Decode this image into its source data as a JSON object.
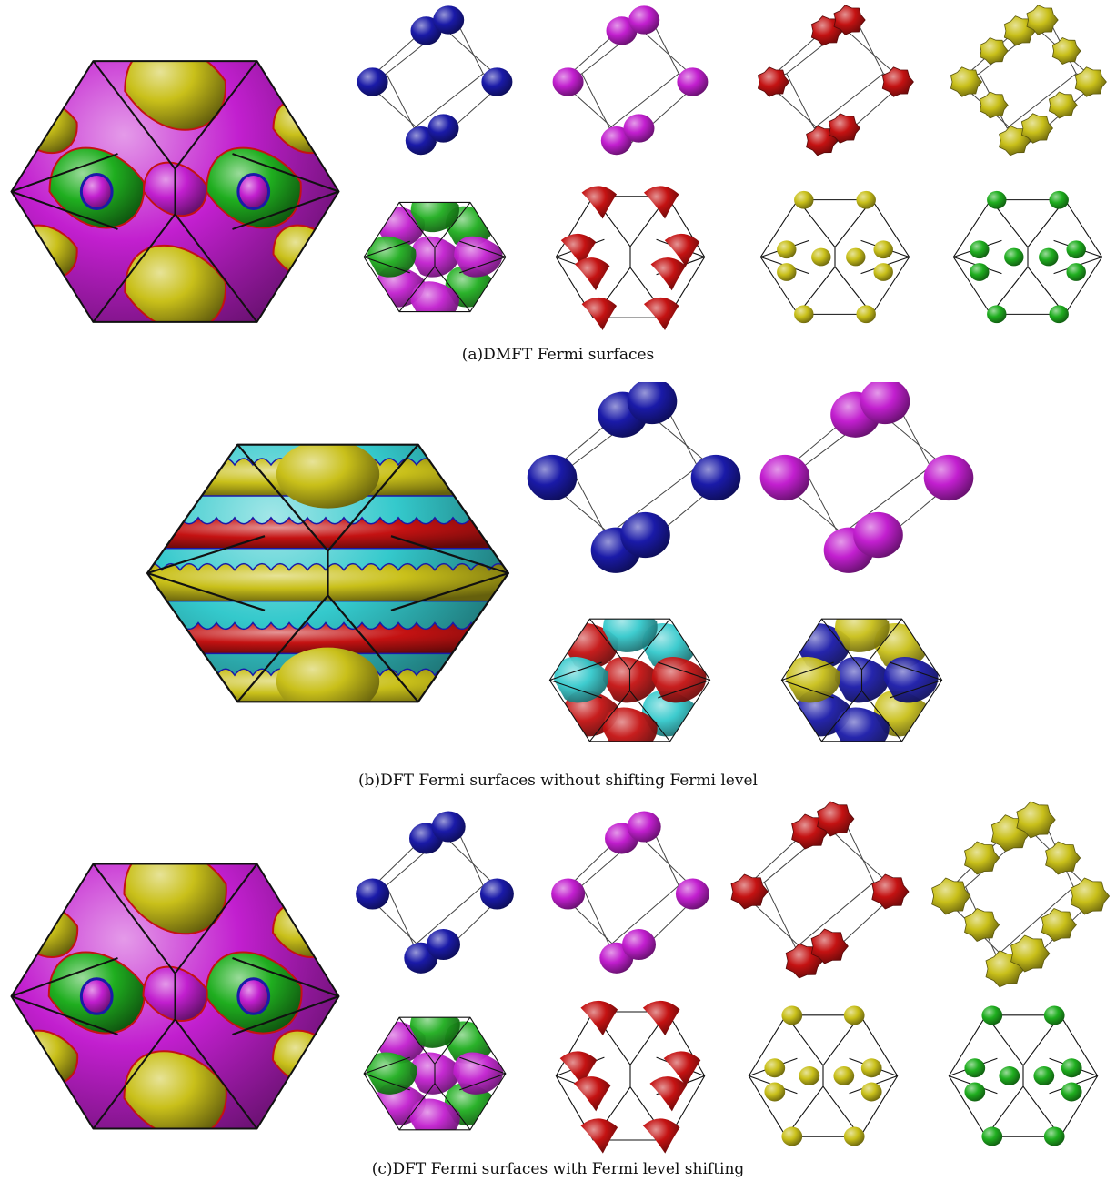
{
  "figure": {
    "captions": {
      "a": "(a)DMFT Fermi surfaces",
      "b": "(b)DFT Fermi surfaces without shifting Fermi level",
      "c": "(c)DFT Fermi surfaces with Fermi level shifting"
    },
    "colors": {
      "blue": "#1a1aa8",
      "magenta": "#c21fcf",
      "red": "#c41212",
      "yellow": "#c9c01a",
      "green": "#1fae1f",
      "cyan": "#34c9cc",
      "edge": "#111111"
    },
    "panels": [
      {
        "id": "a-combined",
        "type": "combined",
        "layers": [
          "magenta",
          "yellow",
          "green",
          "red",
          "blue"
        ]
      },
      {
        "id": "a-blue",
        "type": "blobs",
        "color": "blue"
      },
      {
        "id": "a-magenta",
        "type": "blobs",
        "color": "magenta"
      },
      {
        "id": "a-red",
        "type": "blobs",
        "color": "red"
      },
      {
        "id": "a-yellow",
        "type": "blobs",
        "color": "yellow"
      },
      {
        "id": "a-mixed",
        "type": "mixed",
        "layers": [
          "magenta",
          "green"
        ]
      },
      {
        "id": "a-red-pockets",
        "type": "pockets",
        "color": "red"
      },
      {
        "id": "a-yellow-spheres",
        "type": "spheres",
        "color": "yellow"
      },
      {
        "id": "a-green-spheres",
        "type": "spheres",
        "color": "green"
      },
      {
        "id": "b-combined",
        "type": "combined",
        "layers": [
          "red",
          "yellow",
          "cyan",
          "blue",
          "magenta"
        ]
      },
      {
        "id": "b-blue",
        "type": "blobs",
        "color": "blue"
      },
      {
        "id": "b-magenta",
        "type": "blobs",
        "color": "magenta"
      },
      {
        "id": "b-red-cyan",
        "type": "mixed",
        "layers": [
          "red",
          "cyan"
        ]
      },
      {
        "id": "b-blue-yellow",
        "type": "mixed",
        "layers": [
          "blue",
          "yellow"
        ]
      },
      {
        "id": "c-combined",
        "type": "combined",
        "layers": [
          "magenta",
          "yellow",
          "green",
          "red",
          "blue"
        ]
      },
      {
        "id": "c-blue",
        "type": "blobs",
        "color": "blue"
      },
      {
        "id": "c-magenta",
        "type": "blobs",
        "color": "magenta"
      },
      {
        "id": "c-red",
        "type": "blobs",
        "color": "red"
      },
      {
        "id": "c-yellow",
        "type": "blobs",
        "color": "yellow"
      },
      {
        "id": "c-mixed",
        "type": "mixed",
        "layers": [
          "magenta",
          "green"
        ]
      },
      {
        "id": "c-red-pockets",
        "type": "pockets",
        "color": "red"
      },
      {
        "id": "c-yellow-spheres",
        "type": "spheres",
        "color": "yellow"
      },
      {
        "id": "c-green-spheres",
        "type": "spheres",
        "color": "green"
      }
    ]
  }
}
